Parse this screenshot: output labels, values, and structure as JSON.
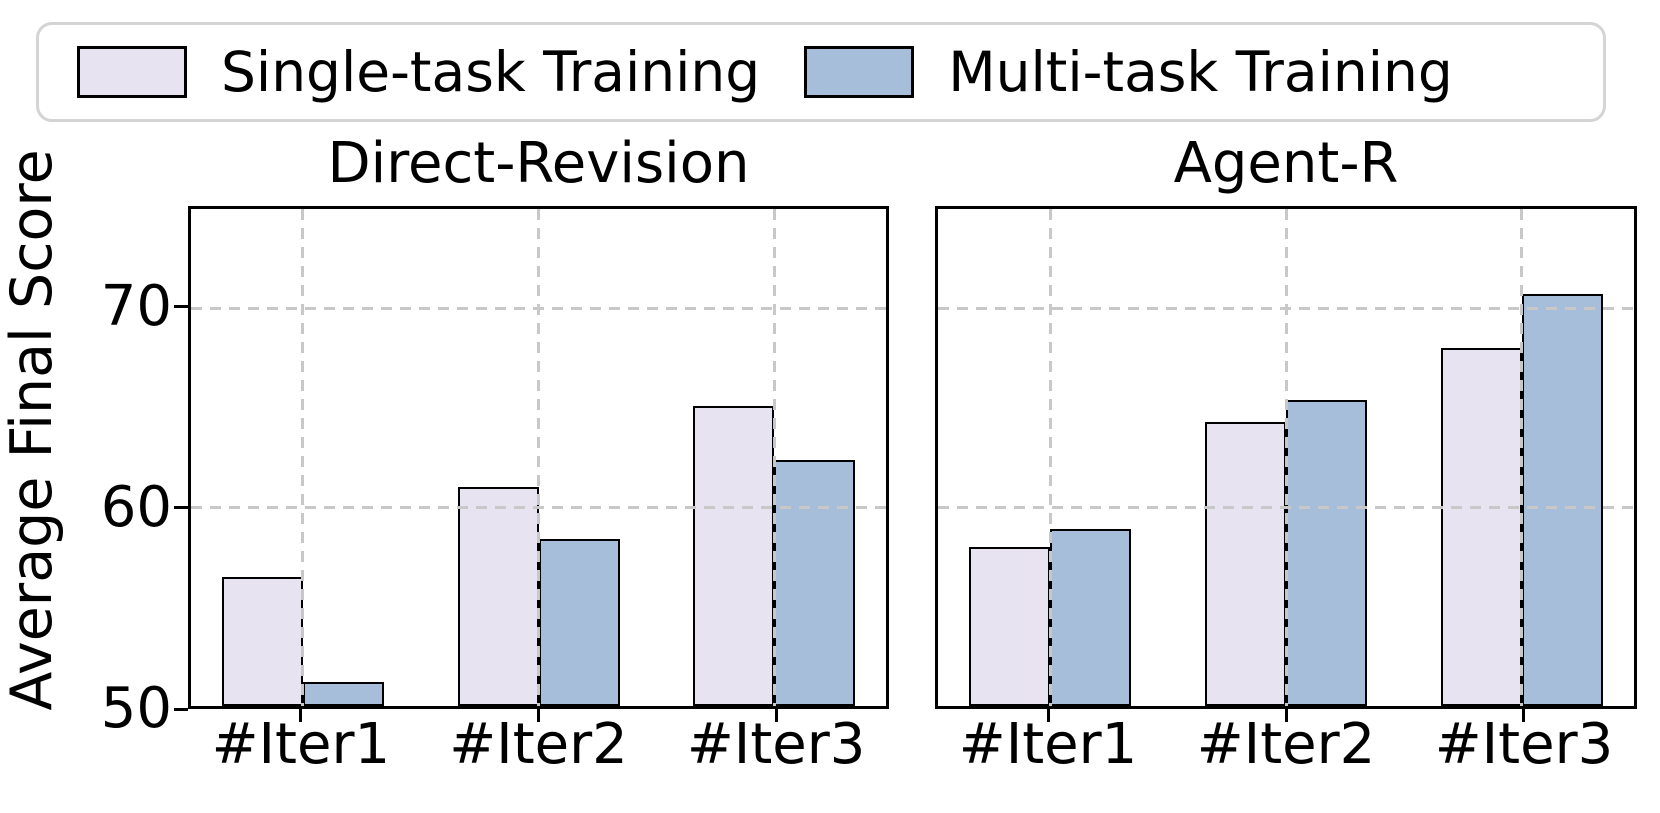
{
  "ylabel": "Average Final Score",
  "chart_data": [
    {
      "type": "bar",
      "title": "Direct-Revision",
      "ylabel": "Average Final Score",
      "categories": [
        "#Iter1",
        "#Iter2",
        "#Iter3"
      ],
      "series": [
        {
          "name": "Single-task Training",
          "color": "#e8e3f0",
          "edge_color": "#000000",
          "values": [
            56.5,
            61.0,
            65.1
          ]
        },
        {
          "name": "Multi-task Training",
          "color": "#a7bedb",
          "edge_color": "#000000",
          "values": [
            51.2,
            58.4,
            62.4
          ]
        }
      ],
      "ylim": [
        50,
        75
      ],
      "yticks": [
        50,
        60,
        70
      ],
      "grid": "dashed",
      "grid_color": "#c8c8c8",
      "legend_position": "top"
    },
    {
      "type": "bar",
      "title": "Agent-R",
      "ylabel": "Average Final Score",
      "categories": [
        "#Iter1",
        "#Iter2",
        "#Iter3"
      ],
      "series": [
        {
          "name": "Single-task Training",
          "color": "#e8e3f0",
          "edge_color": "#000000",
          "values": [
            58.0,
            64.3,
            68.0
          ]
        },
        {
          "name": "Multi-task Training",
          "color": "#a7bedb",
          "edge_color": "#000000",
          "values": [
            58.9,
            65.4,
            70.7
          ]
        }
      ],
      "ylim": [
        50,
        75
      ],
      "yticks": [
        50,
        60,
        70
      ],
      "grid": "dashed",
      "grid_color": "#c8c8c8",
      "legend_position": "top"
    }
  ]
}
